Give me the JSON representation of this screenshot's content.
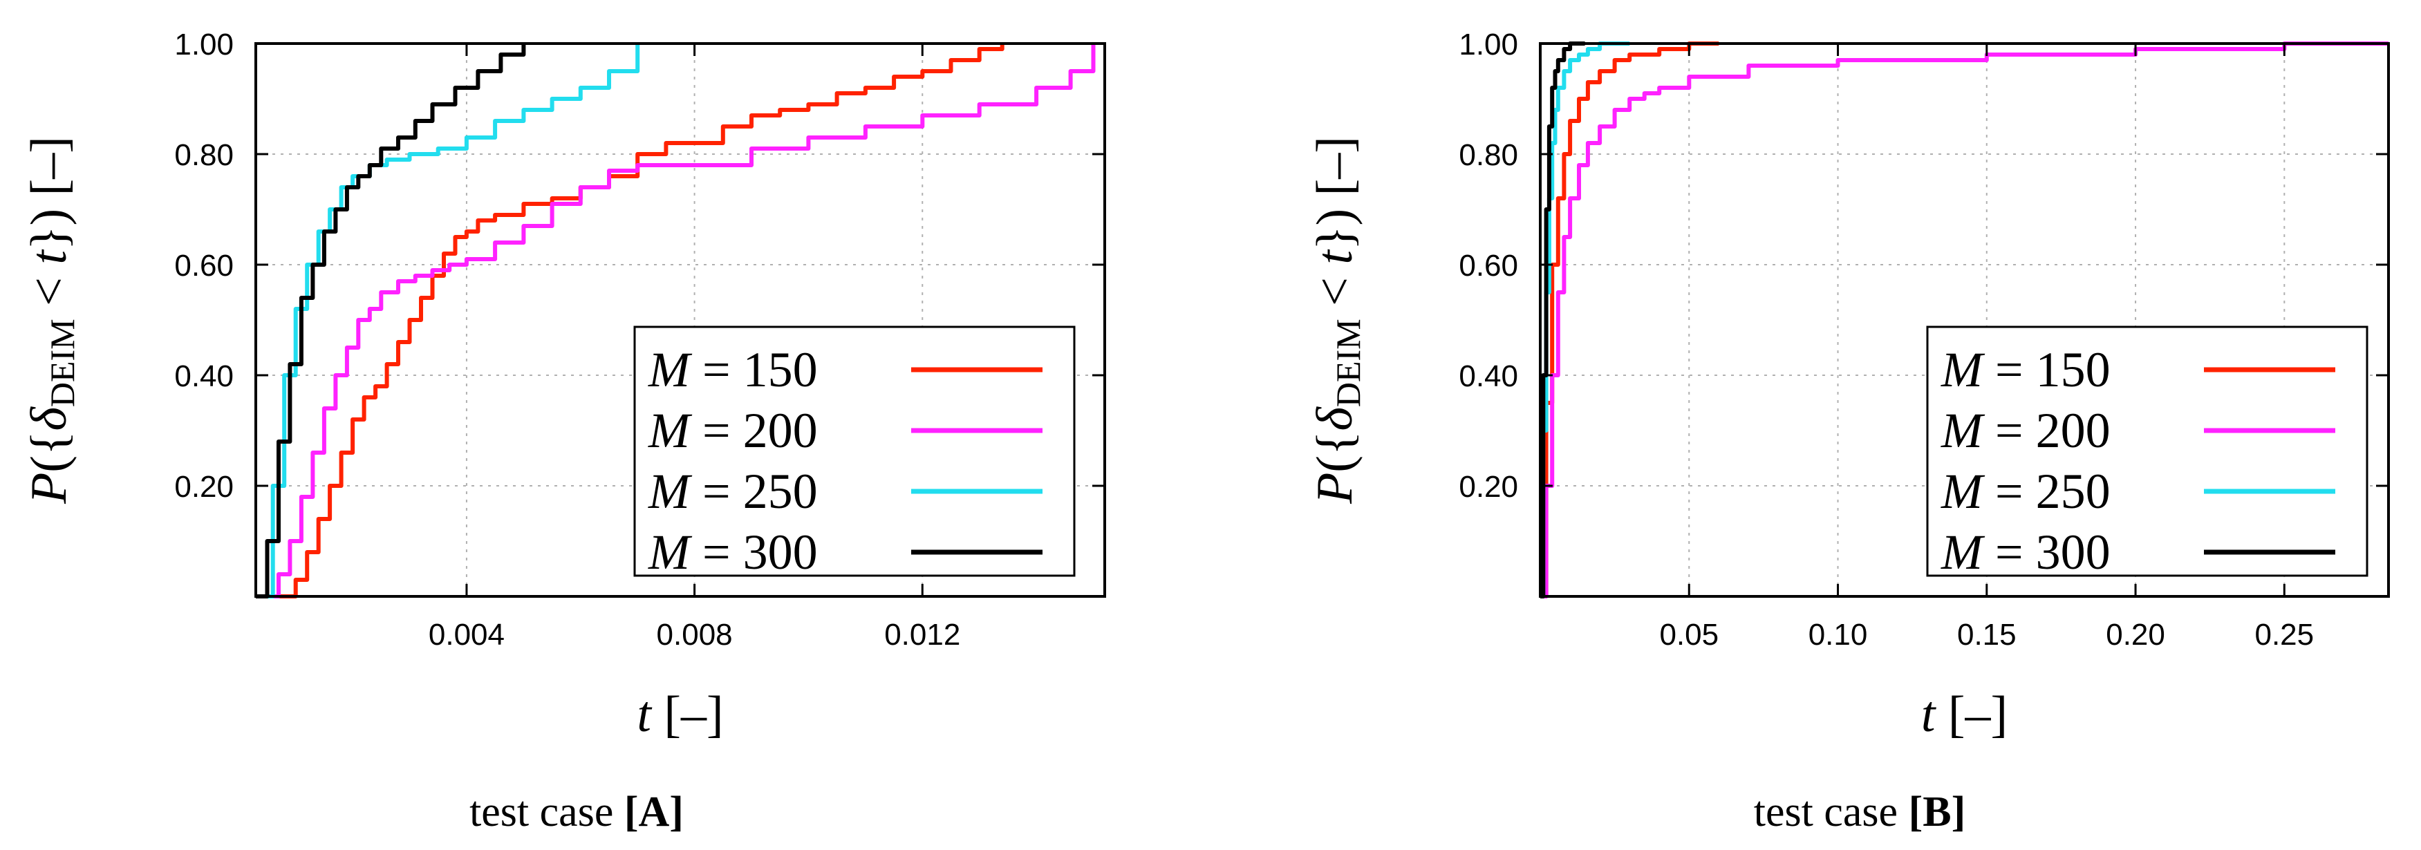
{
  "chart_data": [
    {
      "type": "line",
      "caption_prefix": "test case ",
      "caption_tag": "[A]",
      "xlabel": "t [–]",
      "ylabel": "P({δDEIM < t}) [–]",
      "xlim": [
        0.0003,
        0.0152
      ],
      "ylim": [
        0.0,
        1.0
      ],
      "xticks": [
        0.004,
        0.008,
        0.012
      ],
      "xtick_labels": [
        "0.004",
        "0.008",
        "0.012"
      ],
      "yticks": [
        0.2,
        0.4,
        0.6,
        0.8,
        1.0
      ],
      "ytick_labels": [
        "0.20",
        "0.40",
        "0.60",
        "0.80",
        "1.00"
      ],
      "grid": true,
      "legend_position": "bottom-right",
      "series": [
        {
          "name": "M = 150",
          "color": "#ff2200",
          "x": [
            0.0007,
            0.001,
            0.0012,
            0.0014,
            0.0016,
            0.0018,
            0.002,
            0.0022,
            0.0024,
            0.0026,
            0.0028,
            0.003,
            0.0032,
            0.0034,
            0.0036,
            0.0038,
            0.004,
            0.0042,
            0.0045,
            0.005,
            0.0055,
            0.006,
            0.0065,
            0.007,
            0.0075,
            0.008,
            0.0085,
            0.009,
            0.0095,
            0.01,
            0.0105,
            0.011,
            0.0115,
            0.012,
            0.0125,
            0.013,
            0.0134
          ],
          "y": [
            0.0,
            0.03,
            0.08,
            0.14,
            0.2,
            0.26,
            0.32,
            0.36,
            0.38,
            0.42,
            0.46,
            0.5,
            0.54,
            0.58,
            0.62,
            0.65,
            0.66,
            0.68,
            0.69,
            0.71,
            0.72,
            0.74,
            0.76,
            0.8,
            0.82,
            0.82,
            0.85,
            0.87,
            0.88,
            0.89,
            0.91,
            0.92,
            0.94,
            0.95,
            0.97,
            0.99,
            1.0
          ]
        },
        {
          "name": "M = 200",
          "color": "#ff22ff",
          "x": [
            0.0005,
            0.0007,
            0.0009,
            0.0011,
            0.0013,
            0.0015,
            0.0017,
            0.0019,
            0.0021,
            0.0023,
            0.0025,
            0.0028,
            0.0031,
            0.0034,
            0.0037,
            0.004,
            0.0045,
            0.005,
            0.0055,
            0.006,
            0.0065,
            0.007,
            0.008,
            0.009,
            0.01,
            0.011,
            0.012,
            0.013,
            0.014,
            0.0146,
            0.015
          ],
          "y": [
            0.0,
            0.04,
            0.1,
            0.18,
            0.26,
            0.34,
            0.4,
            0.45,
            0.5,
            0.52,
            0.55,
            0.57,
            0.58,
            0.59,
            0.6,
            0.61,
            0.64,
            0.67,
            0.71,
            0.74,
            0.77,
            0.78,
            0.78,
            0.81,
            0.83,
            0.85,
            0.87,
            0.89,
            0.92,
            0.95,
            1.0
          ]
        },
        {
          "name": "M = 250",
          "color": "#22ddee",
          "x": [
            0.0004,
            0.0006,
            0.0008,
            0.001,
            0.0012,
            0.0014,
            0.0016,
            0.0018,
            0.002,
            0.0023,
            0.0026,
            0.003,
            0.0035,
            0.004,
            0.0045,
            0.005,
            0.0055,
            0.006,
            0.0065,
            0.007
          ],
          "y": [
            0.0,
            0.2,
            0.4,
            0.52,
            0.6,
            0.66,
            0.7,
            0.74,
            0.76,
            0.78,
            0.79,
            0.8,
            0.81,
            0.83,
            0.86,
            0.88,
            0.9,
            0.92,
            0.95,
            1.0
          ]
        },
        {
          "name": "M = 300",
          "color": "#000000",
          "x": [
            0.0003,
            0.0005,
            0.0007,
            0.0009,
            0.0011,
            0.0013,
            0.0015,
            0.0017,
            0.0019,
            0.0021,
            0.0023,
            0.0025,
            0.0028,
            0.0031,
            0.0034,
            0.0038,
            0.0042,
            0.0046,
            0.005
          ],
          "y": [
            0.0,
            0.1,
            0.28,
            0.42,
            0.54,
            0.6,
            0.66,
            0.7,
            0.74,
            0.76,
            0.78,
            0.81,
            0.83,
            0.86,
            0.89,
            0.92,
            0.95,
            0.98,
            1.0
          ]
        }
      ]
    },
    {
      "type": "line",
      "caption_prefix": "test case ",
      "caption_tag": "[B]",
      "xlabel": "t [–]",
      "ylabel": "P({δDEIM < t}) [–]",
      "xlim": [
        0.0,
        0.285
      ],
      "ylim": [
        0.0,
        1.0
      ],
      "xticks": [
        0.05,
        0.1,
        0.15,
        0.2,
        0.25
      ],
      "xtick_labels": [
        "0.05",
        "0.10",
        "0.15",
        "0.20",
        "0.25"
      ],
      "yticks": [
        0.2,
        0.4,
        0.6,
        0.8,
        1.0
      ],
      "ytick_labels": [
        "0.20",
        "0.40",
        "0.60",
        "0.80",
        "1.00"
      ],
      "grid": true,
      "legend_position": "bottom-right",
      "series": [
        {
          "name": "M = 150",
          "color": "#ff2200",
          "x": [
            0.0,
            0.002,
            0.004,
            0.006,
            0.008,
            0.01,
            0.013,
            0.016,
            0.02,
            0.025,
            0.03,
            0.04,
            0.05,
            0.06
          ],
          "y": [
            0.0,
            0.35,
            0.6,
            0.72,
            0.8,
            0.86,
            0.9,
            0.93,
            0.95,
            0.97,
            0.98,
            0.99,
            1.0,
            1.0
          ]
        },
        {
          "name": "M = 200",
          "color": "#ff22ff",
          "x": [
            0.0,
            0.002,
            0.004,
            0.006,
            0.008,
            0.01,
            0.013,
            0.016,
            0.02,
            0.025,
            0.03,
            0.035,
            0.04,
            0.05,
            0.07,
            0.1,
            0.15,
            0.2,
            0.25,
            0.285
          ],
          "y": [
            0.0,
            0.2,
            0.4,
            0.55,
            0.65,
            0.72,
            0.78,
            0.82,
            0.85,
            0.88,
            0.9,
            0.91,
            0.92,
            0.94,
            0.96,
            0.97,
            0.98,
            0.99,
            1.0,
            1.0
          ]
        },
        {
          "name": "M = 250",
          "color": "#22ddee",
          "x": [
            0.0,
            0.001,
            0.002,
            0.003,
            0.004,
            0.005,
            0.006,
            0.008,
            0.01,
            0.013,
            0.016,
            0.02,
            0.025,
            0.03
          ],
          "y": [
            0.0,
            0.3,
            0.55,
            0.72,
            0.82,
            0.88,
            0.92,
            0.95,
            0.97,
            0.98,
            0.99,
            1.0,
            1.0,
            1.0
          ]
        },
        {
          "name": "M = 300",
          "color": "#000000",
          "x": [
            0.0,
            0.001,
            0.002,
            0.003,
            0.004,
            0.005,
            0.006,
            0.008,
            0.01,
            0.012,
            0.015
          ],
          "y": [
            0.0,
            0.4,
            0.7,
            0.85,
            0.92,
            0.95,
            0.97,
            0.99,
            1.0,
            1.0,
            1.0
          ]
        }
      ]
    }
  ]
}
